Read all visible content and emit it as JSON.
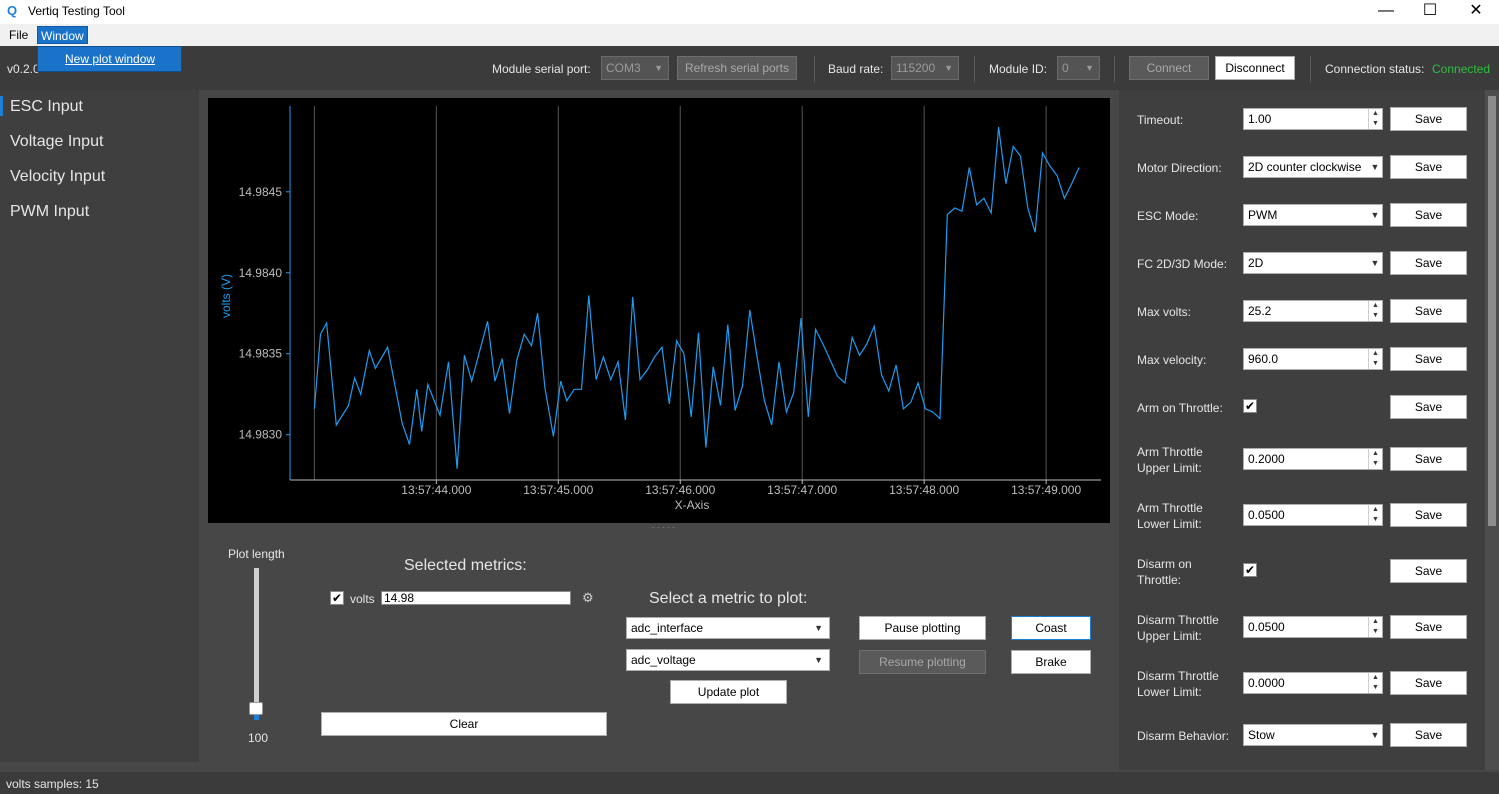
{
  "window": {
    "title": "Vertiq Testing Tool",
    "icon": "q-logo-icon",
    "minimize": "—",
    "maximize": "☐",
    "close": "✕"
  },
  "menubar": {
    "file": "File",
    "window": "Window",
    "dropdown_item": "New plot window"
  },
  "toolbar": {
    "version": "v0.2.0",
    "serial_port_label": "Module serial port:",
    "serial_port_value": "COM3",
    "refresh_label": "Refresh serial ports",
    "baud_label": "Baud rate:",
    "baud_value": "115200",
    "module_id_label": "Module ID:",
    "module_id_value": "0",
    "connect_label": "Connect",
    "disconnect_label": "Disconnect",
    "status_label": "Connection status:",
    "status_value": "Connected",
    "status_color": "#2fbf3f"
  },
  "sidebar": {
    "items": [
      "ESC Input",
      "Voltage Input",
      "Velocity Input",
      "PWM Input"
    ],
    "active": 0
  },
  "chart_data": {
    "type": "line",
    "title": "",
    "xlabel": "X-Axis",
    "ylabel": "volts (V)",
    "y_ticks": [
      "14.9845",
      "14.9840",
      "14.9835",
      "14.9830"
    ],
    "x_ticks": [
      "13:57:44.000",
      "13:57:45.000",
      "13:57:46.000",
      "13:57:47.000",
      "13:57:48.000",
      "13:57:49.000"
    ],
    "ylim": [
      14.98272,
      14.98503
    ],
    "xlim": [
      42.8,
      49.45
    ],
    "line_color": "#1e9cf0",
    "series": [
      {
        "values": [
          [
            43.0,
            14.98316
          ],
          [
            43.05,
            14.98362
          ],
          [
            43.1,
            14.98369
          ],
          [
            43.18,
            14.98306
          ],
          [
            43.28,
            14.98318
          ],
          [
            43.33,
            14.98335
          ],
          [
            43.38,
            14.98325
          ],
          [
            43.45,
            14.98352
          ],
          [
            43.5,
            14.98341
          ],
          [
            43.6,
            14.98354
          ],
          [
            43.72,
            14.98307
          ],
          [
            43.78,
            14.98294
          ],
          [
            43.84,
            14.98328
          ],
          [
            43.88,
            14.98302
          ],
          [
            43.93,
            14.98331
          ],
          [
            44.03,
            14.98312
          ],
          [
            44.1,
            14.98345
          ],
          [
            44.17,
            14.98279
          ],
          [
            44.23,
            14.98349
          ],
          [
            44.29,
            14.98333
          ],
          [
            44.35,
            14.9835
          ],
          [
            44.42,
            14.9837
          ],
          [
            44.48,
            14.98333
          ],
          [
            44.54,
            14.98347
          ],
          [
            44.6,
            14.98313
          ],
          [
            44.66,
            14.98346
          ],
          [
            44.72,
            14.98362
          ],
          [
            44.78,
            14.98355
          ],
          [
            44.83,
            14.98375
          ],
          [
            44.89,
            14.98329
          ],
          [
            44.96,
            14.98299
          ],
          [
            45.02,
            14.98333
          ],
          [
            45.07,
            14.98321
          ],
          [
            45.13,
            14.98328
          ],
          [
            45.19,
            14.98328
          ],
          [
            45.25,
            14.98386
          ],
          [
            45.31,
            14.98334
          ],
          [
            45.37,
            14.98348
          ],
          [
            45.43,
            14.98334
          ],
          [
            45.49,
            14.98345
          ],
          [
            45.55,
            14.98309
          ],
          [
            45.61,
            14.98385
          ],
          [
            45.67,
            14.98334
          ],
          [
            45.73,
            14.9834
          ],
          [
            45.79,
            14.98348
          ],
          [
            45.85,
            14.98354
          ],
          [
            45.91,
            14.98319
          ],
          [
            45.97,
            14.98358
          ],
          [
            46.03,
            14.9835
          ],
          [
            46.09,
            14.98311
          ],
          [
            46.15,
            14.98363
          ],
          [
            46.21,
            14.98292
          ],
          [
            46.27,
            14.98342
          ],
          [
            46.33,
            14.98318
          ],
          [
            46.39,
            14.98368
          ],
          [
            46.45,
            14.98315
          ],
          [
            46.51,
            14.9833
          ],
          [
            46.57,
            14.98377
          ],
          [
            46.63,
            14.98348
          ],
          [
            46.69,
            14.98321
          ],
          [
            46.75,
            14.98306
          ],
          [
            46.81,
            14.98345
          ],
          [
            46.87,
            14.98314
          ],
          [
            46.93,
            14.98326
          ],
          [
            46.99,
            14.98372
          ],
          [
            47.05,
            14.98311
          ],
          [
            47.11,
            14.98365
          ],
          [
            47.17,
            14.98356
          ],
          [
            47.23,
            14.98346
          ],
          [
            47.29,
            14.98336
          ],
          [
            47.35,
            14.98332
          ],
          [
            47.41,
            14.9836
          ],
          [
            47.47,
            14.98349
          ],
          [
            47.53,
            14.98356
          ],
          [
            47.59,
            14.98367
          ],
          [
            47.65,
            14.98337
          ],
          [
            47.71,
            14.98327
          ],
          [
            47.77,
            14.98343
          ],
          [
            47.83,
            14.98316
          ],
          [
            47.89,
            14.9832
          ],
          [
            47.95,
            14.98332
          ],
          [
            48.01,
            14.98316
          ],
          [
            48.07,
            14.98314
          ],
          [
            48.13,
            14.9831
          ],
          [
            48.19,
            14.98436
          ],
          [
            48.25,
            14.9844
          ],
          [
            48.31,
            14.98438
          ],
          [
            48.37,
            14.98465
          ],
          [
            48.43,
            14.98442
          ],
          [
            48.49,
            14.98446
          ],
          [
            48.55,
            14.98437
          ],
          [
            48.61,
            14.9849
          ],
          [
            48.67,
            14.98455
          ],
          [
            48.73,
            14.98478
          ],
          [
            48.79,
            14.98472
          ],
          [
            48.85,
            14.9844
          ],
          [
            48.91,
            14.98425
          ],
          [
            48.97,
            14.98474
          ],
          [
            49.03,
            14.98466
          ],
          [
            49.09,
            14.9846
          ],
          [
            49.15,
            14.98446
          ],
          [
            49.21,
            14.98455
          ],
          [
            49.27,
            14.98465
          ]
        ]
      }
    ]
  },
  "controls": {
    "plot_length_label": "Plot length",
    "plot_length_value": "100",
    "plot_length_level": 1.0,
    "selected_metrics_title": "Selected metrics:",
    "metric_name": "volts",
    "metric_value": "14.98",
    "metric_checked": "✔",
    "gear_icon": "gear-icon",
    "clear_label": "Clear",
    "select_metric_title": "Select a metric to plot:",
    "metric_dropdown_1": "adc_interface",
    "metric_dropdown_2": "adc_voltage",
    "update_plot_label": "Update plot",
    "pause_label": "Pause plotting",
    "resume_label": "Resume plotting",
    "coast_label": "Coast",
    "brake_label": "Brake"
  },
  "settings": {
    "save_label": "Save",
    "rows": [
      {
        "label": "Timeout:",
        "type": "spin",
        "value": "1.00"
      },
      {
        "label": "Motor Direction:",
        "type": "combo",
        "value": "2D counter clockwise"
      },
      {
        "label": "ESC Mode:",
        "type": "combo",
        "value": "PWM"
      },
      {
        "label": "FC 2D/3D Mode:",
        "type": "combo",
        "value": "2D"
      },
      {
        "label": "Max volts:",
        "type": "spin",
        "value": "25.2"
      },
      {
        "label": "Max velocity:",
        "type": "spin",
        "value": "960.0"
      },
      {
        "label": "Arm on Throttle:",
        "type": "check",
        "value": "✔"
      },
      {
        "label": "Arm Throttle Upper Limit:",
        "type": "spin",
        "value": "0.2000"
      },
      {
        "label": "Arm Throttle Lower Limit:",
        "type": "spin",
        "value": "0.0500"
      },
      {
        "label": "Disarm on Throttle:",
        "type": "check",
        "value": "✔"
      },
      {
        "label": "Disarm Throttle Upper Limit:",
        "type": "spin",
        "value": "0.0500"
      },
      {
        "label": "Disarm Throttle Lower Limit:",
        "type": "spin",
        "value": "0.0000"
      },
      {
        "label": "Disarm Behavior:",
        "type": "combo",
        "value": "Stow"
      }
    ]
  },
  "statusbar": {
    "text": "volts samples: 15"
  }
}
